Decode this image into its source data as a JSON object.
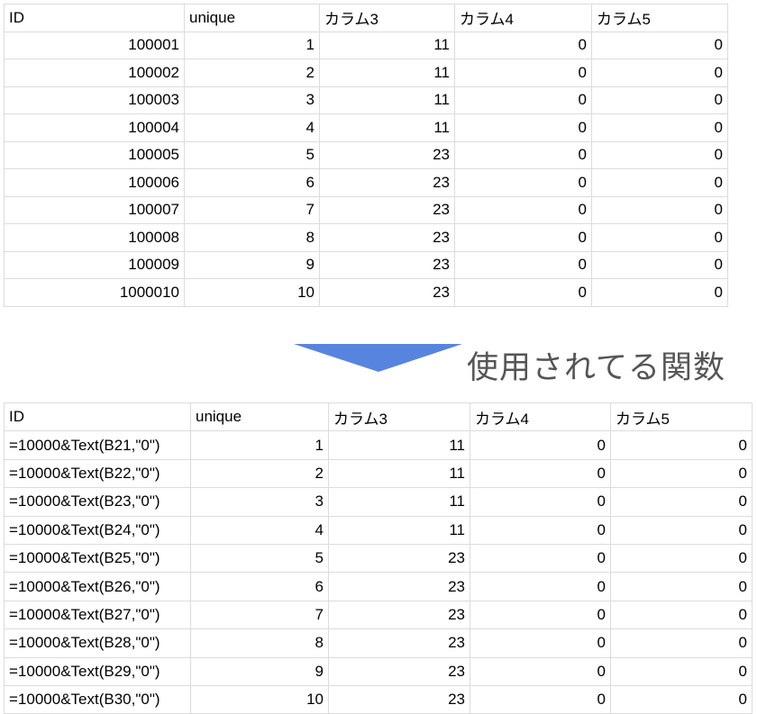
{
  "colors": {
    "arrow": "#5784de",
    "grid": "#dcdcdc",
    "caption": "#555555"
  },
  "top_table": {
    "headers": [
      "ID",
      "unique",
      "カラム3",
      "カラム4",
      "カラム5"
    ],
    "rows": [
      [
        "100001",
        "1",
        "11",
        "0",
        "0"
      ],
      [
        "100002",
        "2",
        "11",
        "0",
        "0"
      ],
      [
        "100003",
        "3",
        "11",
        "0",
        "0"
      ],
      [
        "100004",
        "4",
        "11",
        "0",
        "0"
      ],
      [
        "100005",
        "5",
        "23",
        "0",
        "0"
      ],
      [
        "100006",
        "6",
        "23",
        "0",
        "0"
      ],
      [
        "100007",
        "7",
        "23",
        "0",
        "0"
      ],
      [
        "100008",
        "8",
        "23",
        "0",
        "0"
      ],
      [
        "100009",
        "9",
        "23",
        "0",
        "0"
      ],
      [
        "1000010",
        "10",
        "23",
        "0",
        "0"
      ]
    ]
  },
  "arrow": {
    "icon": "down-arrow-triangle-icon"
  },
  "caption": "使用されてる関数",
  "bottom_table": {
    "headers": [
      "ID",
      "unique",
      "カラム3",
      "カラム4",
      "カラム5"
    ],
    "rows": [
      [
        "=10000&Text(B21,\"0\")",
        "1",
        "11",
        "0",
        "0"
      ],
      [
        "=10000&Text(B22,\"0\")",
        "2",
        "11",
        "0",
        "0"
      ],
      [
        "=10000&Text(B23,\"0\")",
        "3",
        "11",
        "0",
        "0"
      ],
      [
        "=10000&Text(B24,\"0\")",
        "4",
        "11",
        "0",
        "0"
      ],
      [
        "=10000&Text(B25,\"0\")",
        "5",
        "23",
        "0",
        "0"
      ],
      [
        "=10000&Text(B26,\"0\")",
        "6",
        "23",
        "0",
        "0"
      ],
      [
        "=10000&Text(B27,\"0\")",
        "7",
        "23",
        "0",
        "0"
      ],
      [
        "=10000&Text(B28,\"0\")",
        "8",
        "23",
        "0",
        "0"
      ],
      [
        "=10000&Text(B29,\"0\")",
        "9",
        "23",
        "0",
        "0"
      ],
      [
        "=10000&Text(B30,\"0\")",
        "10",
        "23",
        "0",
        "0"
      ]
    ]
  }
}
